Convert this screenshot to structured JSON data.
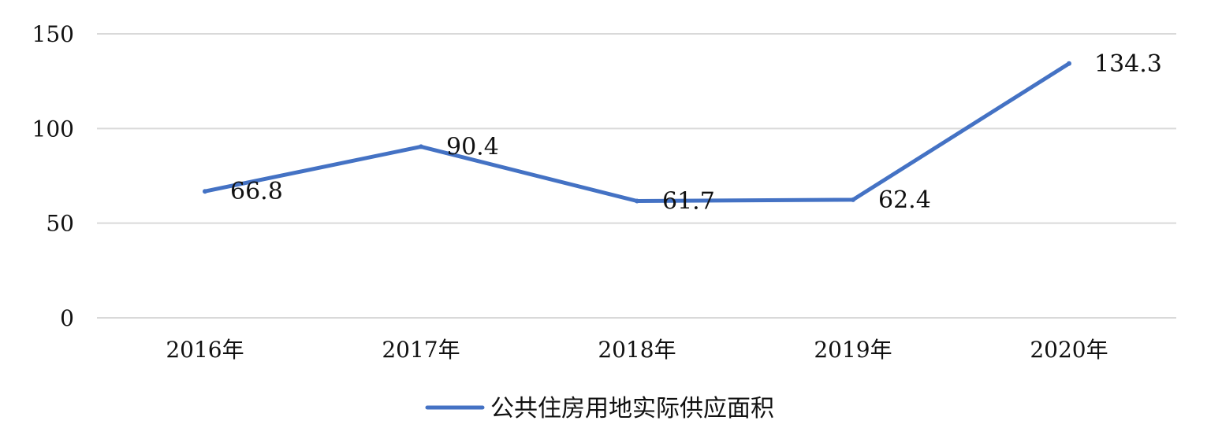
{
  "chart_data": {
    "type": "line",
    "title": "",
    "xlabel": "",
    "ylabel": "",
    "categories": [
      "2016年",
      "2017年",
      "2018年",
      "2019年",
      "2020年"
    ],
    "series": [
      {
        "name": "公共住房用地实际供应面积",
        "values": [
          66.8,
          90.4,
          61.7,
          62.4,
          134.3
        ],
        "labels": [
          "66.8",
          "90.4",
          "61.7",
          "62.4",
          "134.3"
        ],
        "color": "#4472C4"
      }
    ],
    "yticks": [
      "0",
      "50",
      "100",
      "150"
    ],
    "ylim": [
      0,
      150
    ],
    "grid": true,
    "legend": "bottom"
  }
}
